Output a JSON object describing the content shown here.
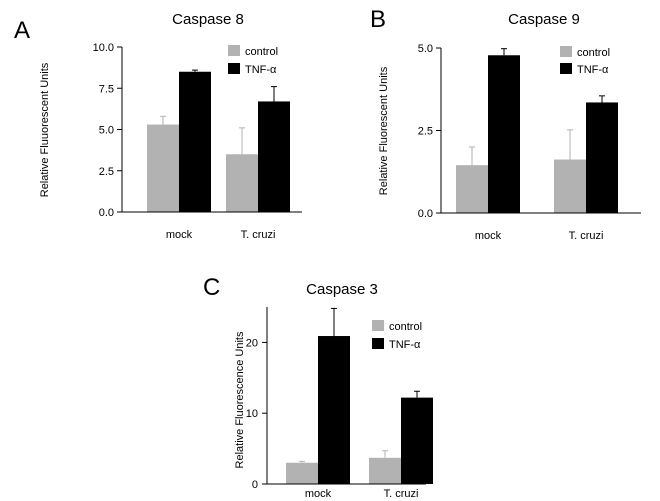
{
  "figure": {
    "panels": [
      {
        "letter": "A"
      },
      {
        "letter": "B"
      },
      {
        "letter": "C"
      }
    ]
  },
  "colors": {
    "control": "#b2b2b2",
    "tnf": "#000000",
    "axis": "#000000"
  },
  "chart_data": [
    {
      "type": "bar",
      "title": "Caspase 8",
      "xlabel": "",
      "ylabel": "Relative Fluuorescent Units",
      "categories": [
        "mock",
        "T. cruzi"
      ],
      "ylim": [
        0,
        10
      ],
      "yticks": [
        "0.0",
        "2.5",
        "5.0",
        "7.5",
        "10.0"
      ],
      "legend_position": "top-right",
      "series": [
        {
          "name": "control",
          "values": [
            5.3,
            3.5
          ],
          "error": [
            0.5,
            1.6
          ]
        },
        {
          "name": "TNF-α",
          "values": [
            8.5,
            6.7
          ],
          "error": [
            0.1,
            0.9
          ]
        }
      ]
    },
    {
      "type": "bar",
      "title": "Caspase 9",
      "xlabel": "",
      "ylabel": "Relative Fluorescent Units",
      "categories": [
        "mock",
        "T. cruzi"
      ],
      "ylim": [
        0,
        5
      ],
      "yticks": [
        "0.0",
        "2.5",
        "5.0"
      ],
      "legend_position": "top-right",
      "series": [
        {
          "name": "control",
          "values": [
            1.45,
            1.62
          ],
          "error": [
            0.55,
            0.9
          ]
        },
        {
          "name": "TNF-α",
          "values": [
            4.78,
            3.35
          ],
          "error": [
            0.2,
            0.2
          ]
        }
      ]
    },
    {
      "type": "bar",
      "title": "Caspase 3",
      "xlabel": "",
      "ylabel": "Relative Fluorescence Units",
      "categories": [
        "mock",
        "T. cruzi"
      ],
      "ylim": [
        0,
        25
      ],
      "yticks": [
        "0",
        "10",
        "20"
      ],
      "legend_position": "top-right",
      "series": [
        {
          "name": "control",
          "values": [
            3.0,
            3.7
          ],
          "error": [
            0.2,
            1.0
          ]
        },
        {
          "name": "TNF-α",
          "values": [
            20.9,
            12.2
          ],
          "error": [
            3.9,
            0.9
          ]
        }
      ]
    }
  ]
}
